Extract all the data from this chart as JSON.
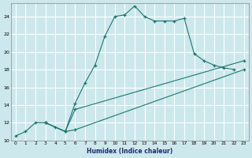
{
  "xlabel": "Humidex (Indice chaleur)",
  "bg_color": "#cce8ec",
  "grid_color": "#ffffff",
  "line_color": "#1a7870",
  "xlim": [
    -0.5,
    23.5
  ],
  "ylim": [
    10,
    25.5
  ],
  "xticks": [
    0,
    1,
    2,
    3,
    4,
    5,
    6,
    7,
    8,
    9,
    10,
    11,
    12,
    13,
    14,
    15,
    16,
    17,
    18,
    19,
    20,
    21,
    22,
    23
  ],
  "yticks": [
    10,
    12,
    14,
    16,
    18,
    20,
    22,
    24
  ],
  "line1_x": [
    0,
    1,
    2,
    3,
    4,
    5,
    6,
    7,
    8,
    9,
    10,
    11,
    12,
    13,
    14,
    15,
    16,
    17,
    18,
    19,
    20,
    21,
    22
  ],
  "line1_y": [
    10.5,
    11.0,
    12.0,
    12.0,
    11.5,
    11.0,
    14.2,
    16.5,
    18.5,
    21.8,
    24.0,
    24.2,
    25.2,
    24.0,
    23.5,
    23.5,
    23.5,
    23.8,
    19.8,
    19.0,
    18.5,
    18.2,
    18.0
  ],
  "line2_x": [
    3,
    5,
    6,
    23
  ],
  "line2_y": [
    12.0,
    11.0,
    13.5,
    19.0
  ],
  "line3_x": [
    3,
    5,
    6,
    23
  ],
  "line3_y": [
    12.0,
    11.0,
    11.2,
    18.0
  ]
}
